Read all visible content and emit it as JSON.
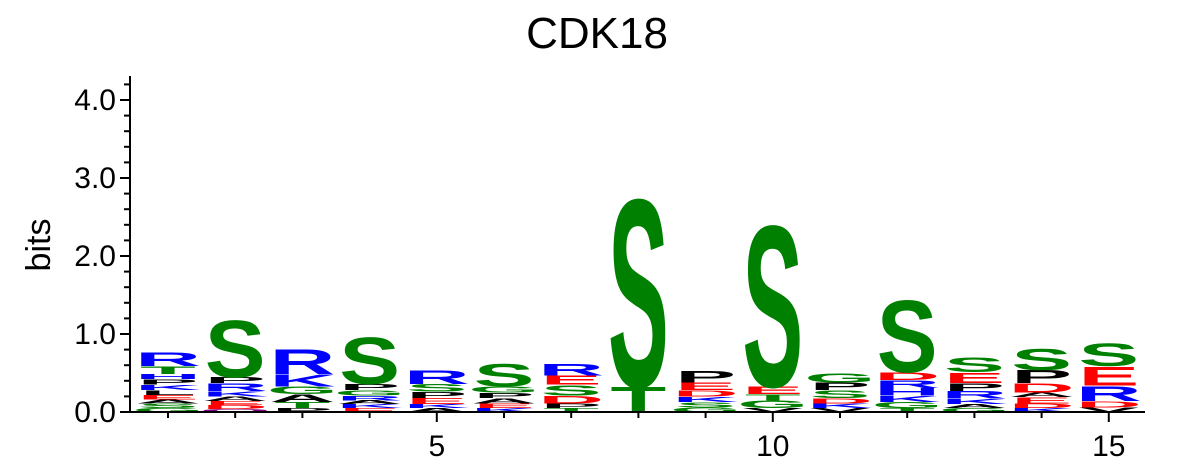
{
  "chart_data": {
    "type": "sequence-logo",
    "title": "CDK18",
    "ylabel": "bits",
    "xlabel": "",
    "ylim": [
      0,
      4.3
    ],
    "yticks": [
      "0.0",
      "1.0",
      "2.0",
      "3.0",
      "4.0"
    ],
    "xticks": [
      "5",
      "10",
      "15"
    ],
    "colors": {
      "green": "#008000",
      "blue": "#0000ff",
      "red": "#ff0000",
      "black": "#000000",
      "purple": "#800080"
    },
    "positions": [
      {
        "pos": 1,
        "letters": [
          {
            "aa": "G",
            "height": 0.05,
            "color": "green"
          },
          {
            "aa": "S",
            "height": 0.06,
            "color": "green"
          },
          {
            "aa": "A",
            "height": 0.05,
            "color": "black"
          },
          {
            "aa": "E",
            "height": 0.06,
            "color": "red"
          },
          {
            "aa": "L",
            "height": 0.06,
            "color": "black"
          },
          {
            "aa": "K",
            "height": 0.07,
            "color": "blue"
          },
          {
            "aa": "P",
            "height": 0.07,
            "color": "black"
          },
          {
            "aa": "H",
            "height": 0.07,
            "color": "blue"
          },
          {
            "aa": "T",
            "height": 0.1,
            "color": "green"
          },
          {
            "aa": "R",
            "height": 0.18,
            "color": "blue"
          }
        ]
      },
      {
        "pos": 2,
        "letters": [
          {
            "aa": "Q",
            "height": 0.04,
            "color": "purple"
          },
          {
            "aa": "D",
            "height": 0.05,
            "color": "red"
          },
          {
            "aa": "E",
            "height": 0.05,
            "color": "red"
          },
          {
            "aa": "A",
            "height": 0.06,
            "color": "black"
          },
          {
            "aa": "K",
            "height": 0.07,
            "color": "blue"
          },
          {
            "aa": "R",
            "height": 0.1,
            "color": "blue"
          },
          {
            "aa": "P",
            "height": 0.08,
            "color": "black"
          },
          {
            "aa": "S",
            "height": 0.75,
            "color": "green"
          }
        ]
      },
      {
        "pos": 3,
        "letters": [
          {
            "aa": "P",
            "height": 0.05,
            "color": "black"
          },
          {
            "aa": "T",
            "height": 0.08,
            "color": "green"
          },
          {
            "aa": "A",
            "height": 0.1,
            "color": "black"
          },
          {
            "aa": "G",
            "height": 0.1,
            "color": "green"
          },
          {
            "aa": "K",
            "height": 0.15,
            "color": "blue"
          },
          {
            "aa": "R",
            "height": 0.33,
            "color": "blue"
          }
        ]
      },
      {
        "pos": 4,
        "letters": [
          {
            "aa": "E",
            "height": 0.05,
            "color": "red"
          },
          {
            "aa": "K",
            "height": 0.05,
            "color": "blue"
          },
          {
            "aa": "A",
            "height": 0.05,
            "color": "black"
          },
          {
            "aa": "R",
            "height": 0.06,
            "color": "blue"
          },
          {
            "aa": "G",
            "height": 0.07,
            "color": "green"
          },
          {
            "aa": "P",
            "height": 0.08,
            "color": "black"
          },
          {
            "aa": "S",
            "height": 0.62,
            "color": "green"
          }
        ]
      },
      {
        "pos": 5,
        "letters": [
          {
            "aa": "A",
            "height": 0.05,
            "color": "black"
          },
          {
            "aa": "K",
            "height": 0.05,
            "color": "blue"
          },
          {
            "aa": "E",
            "height": 0.08,
            "color": "red"
          },
          {
            "aa": "P",
            "height": 0.08,
            "color": "black"
          },
          {
            "aa": "S",
            "height": 0.1,
            "color": "green"
          },
          {
            "aa": "R",
            "height": 0.18,
            "color": "blue"
          }
        ]
      },
      {
        "pos": 6,
        "letters": [
          {
            "aa": "K",
            "height": 0.05,
            "color": "blue"
          },
          {
            "aa": "E",
            "height": 0.06,
            "color": "red"
          },
          {
            "aa": "A",
            "height": 0.07,
            "color": "black"
          },
          {
            "aa": "P",
            "height": 0.07,
            "color": "black"
          },
          {
            "aa": "G",
            "height": 0.08,
            "color": "green"
          },
          {
            "aa": "S",
            "height": 0.3,
            "color": "green"
          }
        ]
      },
      {
        "pos": 7,
        "letters": [
          {
            "aa": "T",
            "height": 0.05,
            "color": "green"
          },
          {
            "aa": "P",
            "height": 0.06,
            "color": "black"
          },
          {
            "aa": "D",
            "height": 0.1,
            "color": "red"
          },
          {
            "aa": "S",
            "height": 0.14,
            "color": "green"
          },
          {
            "aa": "E",
            "height": 0.12,
            "color": "red"
          },
          {
            "aa": "R",
            "height": 0.15,
            "color": "blue"
          }
        ]
      },
      {
        "pos": 8,
        "letters": [
          {
            "aa": "T",
            "height": 0.33,
            "color": "green"
          },
          {
            "aa": "S",
            "height": 2.48,
            "color": "green"
          }
        ]
      },
      {
        "pos": 9,
        "letters": [
          {
            "aa": "G",
            "height": 0.06,
            "color": "green"
          },
          {
            "aa": "S",
            "height": 0.07,
            "color": "green"
          },
          {
            "aa": "K",
            "height": 0.07,
            "color": "blue"
          },
          {
            "aa": "D",
            "height": 0.08,
            "color": "red"
          },
          {
            "aa": "E",
            "height": 0.1,
            "color": "red"
          },
          {
            "aa": "P",
            "height": 0.15,
            "color": "black"
          }
        ]
      },
      {
        "pos": 10,
        "letters": [
          {
            "aa": "V",
            "height": 0.05,
            "color": "black"
          },
          {
            "aa": "G",
            "height": 0.1,
            "color": "green"
          },
          {
            "aa": "T",
            "height": 0.08,
            "color": "green"
          },
          {
            "aa": "E",
            "height": 0.1,
            "color": "red"
          },
          {
            "aa": "S",
            "height": 2.13,
            "color": "green"
          }
        ]
      },
      {
        "pos": 11,
        "letters": [
          {
            "aa": "V",
            "height": 0.05,
            "color": "black"
          },
          {
            "aa": "K",
            "height": 0.06,
            "color": "blue"
          },
          {
            "aa": "D",
            "height": 0.07,
            "color": "red"
          },
          {
            "aa": "S",
            "height": 0.1,
            "color": "green"
          },
          {
            "aa": "P",
            "height": 0.1,
            "color": "black"
          },
          {
            "aa": "G",
            "height": 0.12,
            "color": "green"
          }
        ]
      },
      {
        "pos": 12,
        "letters": [
          {
            "aa": "T",
            "height": 0.05,
            "color": "green"
          },
          {
            "aa": "G",
            "height": 0.08,
            "color": "green"
          },
          {
            "aa": "K",
            "height": 0.08,
            "color": "blue"
          },
          {
            "aa": "H",
            "height": 0.1,
            "color": "blue"
          },
          {
            "aa": "R",
            "height": 0.1,
            "color": "blue"
          },
          {
            "aa": "D",
            "height": 0.1,
            "color": "red"
          },
          {
            "aa": "S",
            "height": 0.95,
            "color": "green"
          }
        ]
      },
      {
        "pos": 13,
        "letters": [
          {
            "aa": "G",
            "height": 0.05,
            "color": "green"
          },
          {
            "aa": "A",
            "height": 0.05,
            "color": "black"
          },
          {
            "aa": "K",
            "height": 0.07,
            "color": "blue"
          },
          {
            "aa": "R",
            "height": 0.1,
            "color": "blue"
          },
          {
            "aa": "P",
            "height": 0.1,
            "color": "black"
          },
          {
            "aa": "E",
            "height": 0.14,
            "color": "red"
          },
          {
            "aa": "S",
            "height": 0.2,
            "color": "green"
          }
        ]
      },
      {
        "pos": 14,
        "letters": [
          {
            "aa": "K",
            "height": 0.05,
            "color": "blue"
          },
          {
            "aa": "D",
            "height": 0.06,
            "color": "red"
          },
          {
            "aa": "E",
            "height": 0.08,
            "color": "red"
          },
          {
            "aa": "A",
            "height": 0.06,
            "color": "black"
          },
          {
            "aa": "D",
            "height": 0.12,
            "color": "red"
          },
          {
            "aa": "P",
            "height": 0.17,
            "color": "black"
          },
          {
            "aa": "S",
            "height": 0.28,
            "color": "green"
          }
        ]
      },
      {
        "pos": 15,
        "letters": [
          {
            "aa": "V",
            "height": 0.06,
            "color": "black"
          },
          {
            "aa": "D",
            "height": 0.08,
            "color": "red"
          },
          {
            "aa": "R",
            "height": 0.2,
            "color": "blue"
          },
          {
            "aa": "E",
            "height": 0.25,
            "color": "red"
          },
          {
            "aa": "S",
            "height": 0.3,
            "color": "green"
          }
        ]
      }
    ]
  }
}
